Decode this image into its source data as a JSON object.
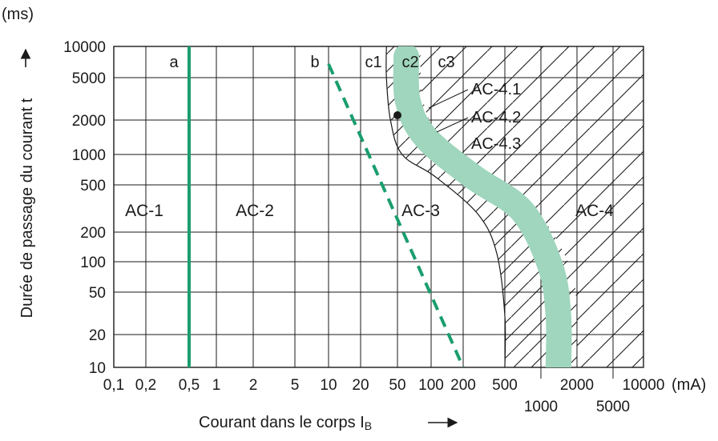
{
  "chart_data": {
    "type": "line",
    "xlabel": "Courant dans le corps I",
    "xlabel_sub": "B",
    "xunit": "(mA)",
    "ylabel": "Durée de passage du courant t",
    "yunit": "(ms)",
    "x_scale": "log",
    "y_scale": "log",
    "xlim": [
      0.1,
      10000
    ],
    "ylim": [
      10,
      10000
    ],
    "grid": true,
    "x_ticks_upper": [
      "0,1",
      "0,2",
      "0,5",
      "1",
      "2",
      "5",
      "10",
      "20",
      "50",
      "100",
      "200",
      "500",
      "2000",
      "10000"
    ],
    "x_ticks_upper_values": [
      0.1,
      0.2,
      0.5,
      1,
      2,
      5,
      10,
      20,
      50,
      100,
      200,
      500,
      2000,
      10000
    ],
    "x_ticks_lower": [
      "1000",
      "5000"
    ],
    "x_ticks_lower_values": [
      1000,
      5000
    ],
    "y_ticks": [
      "10000",
      "5000",
      "2000",
      "1000",
      "500",
      "200",
      "100",
      "50",
      "20",
      "10"
    ],
    "y_ticks_values": [
      10000,
      5000,
      2000,
      1000,
      500,
      200,
      100,
      50,
      20,
      10
    ],
    "zones": [
      "AC-1",
      "AC-2",
      "AC-3",
      "AC-4"
    ],
    "curve_labels": [
      "a",
      "b",
      "c1",
      "c2",
      "c3"
    ],
    "sub_zone_labels": [
      "AC-4.1",
      "AC-4.2",
      "AC-4.3"
    ],
    "series": [
      {
        "name": "a",
        "style": "solid",
        "color": "#1a9e6e",
        "x": [
          0.5,
          0.5
        ],
        "y": [
          10,
          10000
        ]
      },
      {
        "name": "b",
        "style": "dashed",
        "color": "#1a9e6e",
        "x": [
          10,
          200
        ],
        "y": [
          10000,
          10
        ]
      },
      {
        "name": "c1",
        "style": "thin",
        "color": "#1a1a1a",
        "x": [
          38,
          38,
          42,
          55,
          110,
          280,
          420,
          500,
          500
        ],
        "y": [
          10000,
          5000,
          2000,
          1000,
          600,
          280,
          120,
          30,
          10
        ]
      },
      {
        "name": "c2",
        "style": "band",
        "color": "#9fd6bd",
        "x": [
          60,
          62,
          90,
          250,
          700,
          1200,
          1400,
          1400
        ],
        "y": [
          8000,
          3000,
          1400,
          600,
          300,
          90,
          30,
          10
        ]
      },
      {
        "name": "c3",
        "style": "band-edge",
        "color": "#1a1a1a",
        "x": [
          80,
          85,
          130,
          400,
          1000,
          1800,
          2000,
          2000
        ],
        "y": [
          10000,
          3000,
          1300,
          560,
          270,
          80,
          25,
          10
        ]
      }
    ],
    "marker": {
      "x": 50,
      "y": 2000
    }
  }
}
